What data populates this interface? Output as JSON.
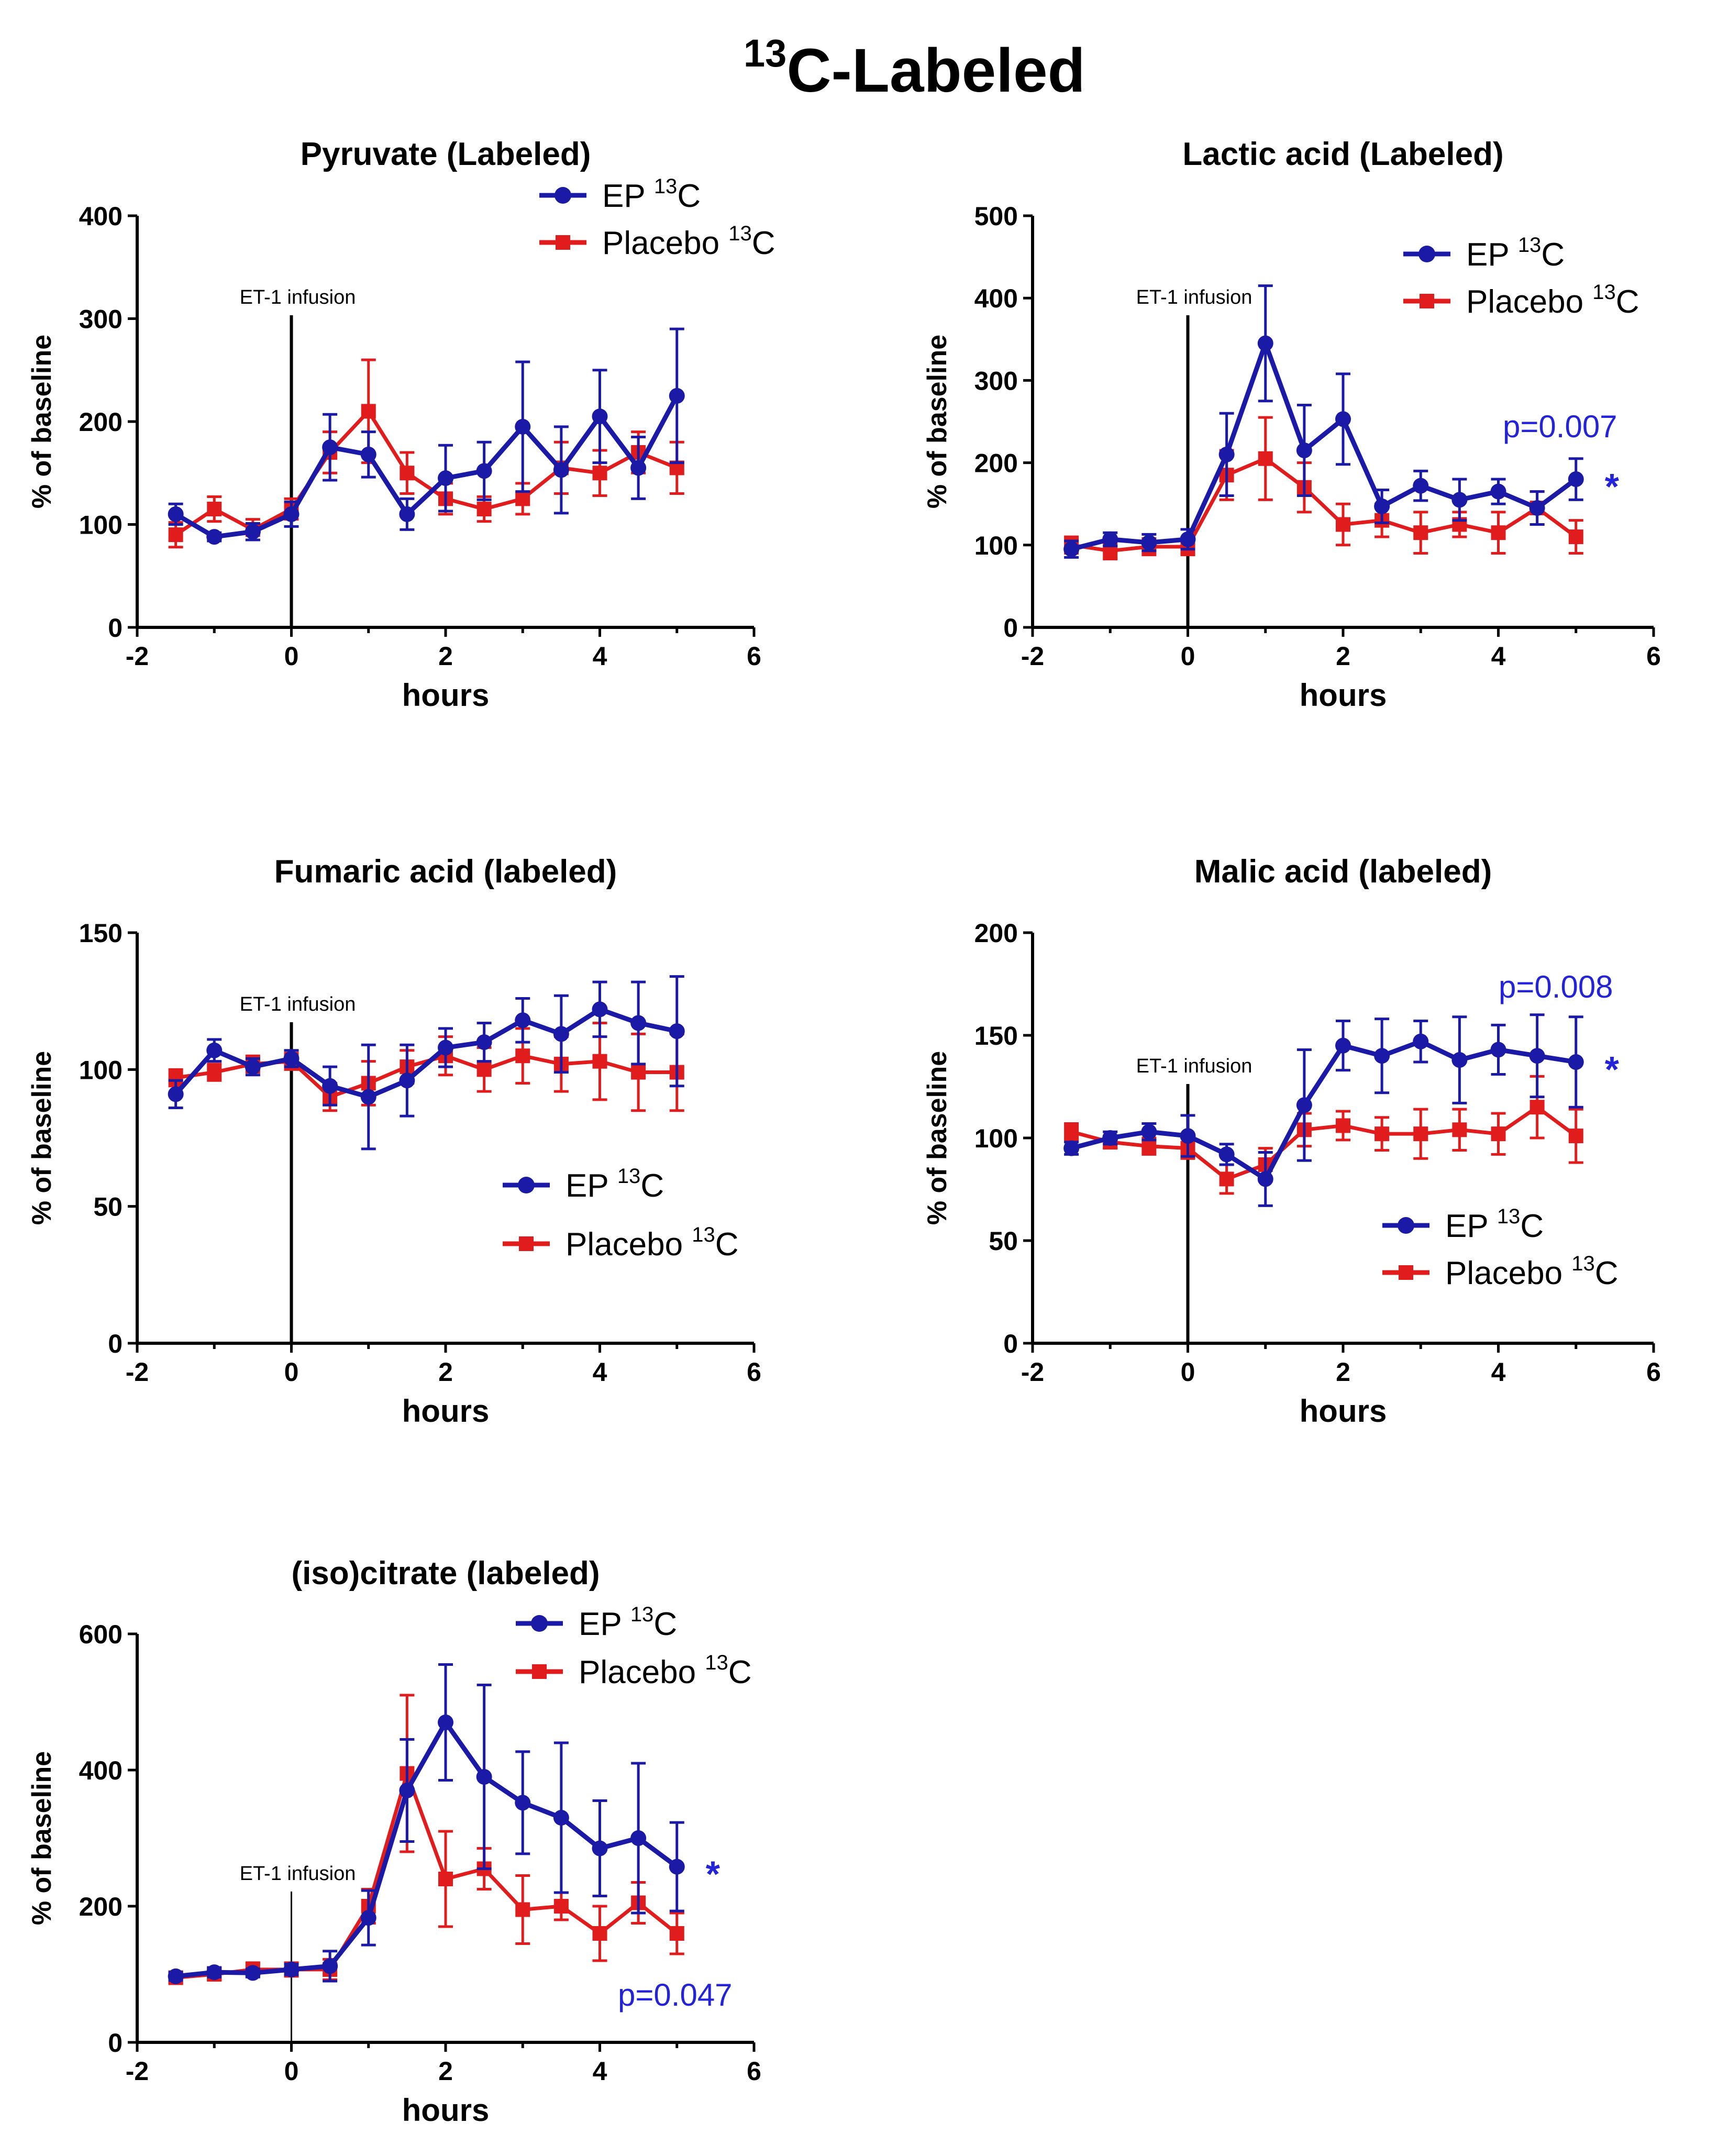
{
  "figure_title": {
    "sup": "13",
    "main": "C-Labeled"
  },
  "colors": {
    "ep": "#1a1aa6",
    "placebo": "#e01c1c",
    "annotation": "#2323d9"
  },
  "legend": {
    "ep_label": "EP",
    "placebo_label": "Placebo",
    "isotope": "C",
    "isotope_sup": "13"
  },
  "infusion_label": "ET-1 infusion",
  "chart_data": [
    {
      "type": "line",
      "title": "Pyruvate (Labeled)",
      "xlabel": "hours",
      "ylabel": "% of baseline",
      "xlim": [
        -2,
        6
      ],
      "ylim": [
        0,
        400
      ],
      "xticks": [
        -2,
        0,
        2,
        4,
        6
      ],
      "yticks": [
        0,
        100,
        200,
        300,
        400
      ],
      "legend_position": "top-right",
      "x": [
        -1.5,
        -1,
        -0.5,
        0,
        0.5,
        1,
        1.5,
        2,
        2.5,
        3,
        3.5,
        4,
        4.5,
        5
      ],
      "series": [
        {
          "name": "EP 13C",
          "key": "ep",
          "values": [
            110,
            88,
            93,
            110,
            175,
            168,
            110,
            145,
            152,
            195,
            153,
            205,
            155,
            225
          ],
          "errors": [
            10,
            4,
            8,
            12,
            32,
            22,
            15,
            32,
            28,
            63,
            42,
            45,
            30,
            65
          ]
        },
        {
          "name": "Placebo 13C",
          "key": "placebo",
          "values": [
            90,
            115,
            95,
            115,
            170,
            210,
            150,
            125,
            115,
            125,
            155,
            150,
            170,
            155
          ],
          "errors": [
            12,
            12,
            10,
            10,
            20,
            50,
            20,
            15,
            12,
            15,
            25,
            22,
            20,
            25
          ]
        }
      ],
      "annotations": []
    },
    {
      "type": "line",
      "title": "Lactic acid (Labeled)",
      "xlabel": "hours",
      "ylabel": "% of baseline",
      "xlim": [
        -2,
        6
      ],
      "ylim": [
        0,
        500
      ],
      "xticks": [
        -2,
        0,
        2,
        4,
        6
      ],
      "yticks": [
        0,
        100,
        200,
        300,
        400,
        500
      ],
      "legend_position": "top-right",
      "x": [
        -1.5,
        -1,
        -0.5,
        0,
        0.5,
        1,
        1.5,
        2,
        2.5,
        3,
        3.5,
        4,
        4.5,
        5
      ],
      "series": [
        {
          "name": "EP 13C",
          "key": "ep",
          "values": [
            95,
            107,
            103,
            107,
            210,
            345,
            215,
            253,
            147,
            172,
            155,
            165,
            145,
            180
          ],
          "errors": [
            10,
            8,
            10,
            12,
            50,
            70,
            55,
            55,
            20,
            18,
            25,
            15,
            20,
            25
          ]
        },
        {
          "name": "Placebo 13C",
          "key": "placebo",
          "values": [
            100,
            93,
            98,
            98,
            185,
            205,
            170,
            125,
            130,
            115,
            125,
            115,
            145,
            110
          ],
          "errors": [
            10,
            10,
            10,
            10,
            30,
            50,
            30,
            25,
            20,
            25,
            15,
            25,
            20,
            20
          ]
        }
      ],
      "annotations": [
        {
          "text": "p=0.007",
          "star": "*"
        }
      ]
    },
    {
      "type": "line",
      "title": "Fumaric acid (labeled)",
      "xlabel": "hours",
      "ylabel": "% of baseline",
      "xlim": [
        -2,
        6
      ],
      "ylim": [
        0,
        150
      ],
      "xticks": [
        -2,
        0,
        2,
        4,
        6
      ],
      "yticks": [
        0,
        50,
        100,
        150
      ],
      "legend_position": "center-right",
      "x": [
        -1.5,
        -1,
        -0.5,
        0,
        0.5,
        1,
        1.5,
        2,
        2.5,
        3,
        3.5,
        4,
        4.5,
        5
      ],
      "series": [
        {
          "name": "EP 13C",
          "key": "ep",
          "values": [
            91,
            107,
            101,
            104,
            94,
            90,
            96,
            108,
            110,
            118,
            113,
            122,
            117,
            114
          ],
          "errors": [
            5,
            4,
            3,
            3,
            7,
            19,
            13,
            7,
            7,
            8,
            14,
            10,
            15,
            20
          ]
        },
        {
          "name": "Placebo 13C",
          "key": "placebo",
          "values": [
            97,
            99,
            102,
            103,
            90,
            95,
            101,
            105,
            100,
            105,
            102,
            103,
            99,
            99
          ],
          "errors": [
            3,
            3,
            3,
            3,
            5,
            8,
            6,
            7,
            8,
            10,
            10,
            14,
            14,
            14
          ]
        }
      ],
      "annotations": []
    },
    {
      "type": "line",
      "title": "Malic acid (labeled)",
      "xlabel": "hours",
      "ylabel": "% of baseline",
      "xlim": [
        -2,
        6
      ],
      "ylim": [
        0,
        200
      ],
      "xticks": [
        -2,
        0,
        2,
        4,
        6
      ],
      "yticks": [
        0,
        50,
        100,
        150,
        200
      ],
      "legend_position": "bottom-right",
      "x": [
        -1.5,
        -1,
        -0.5,
        0,
        0.5,
        1,
        1.5,
        2,
        2.5,
        3,
        3.5,
        4,
        4.5,
        5
      ],
      "series": [
        {
          "name": "EP 13C",
          "key": "ep",
          "values": [
            95,
            100,
            103,
            101,
            92,
            80,
            116,
            145,
            140,
            147,
            138,
            143,
            140,
            137
          ],
          "errors": [
            3,
            3,
            4,
            10,
            5,
            13,
            27,
            12,
            18,
            10,
            21,
            12,
            20,
            22
          ]
        },
        {
          "name": "Placebo 13C",
          "key": "placebo",
          "values": [
            103,
            98,
            96,
            95,
            80,
            87,
            104,
            106,
            102,
            102,
            104,
            102,
            115,
            101
          ],
          "errors": [
            4,
            3,
            4,
            5,
            7,
            8,
            8,
            7,
            8,
            12,
            10,
            10,
            15,
            13
          ]
        }
      ],
      "annotations": [
        {
          "text": "p=0.008",
          "star": "*"
        }
      ]
    },
    {
      "type": "line",
      "title": "(iso)citrate (labeled)",
      "xlabel": "hours",
      "ylabel": "% of baseline",
      "xlim": [
        -2,
        6
      ],
      "ylim": [
        0,
        600
      ],
      "xticks": [
        -2,
        0,
        2,
        4,
        6
      ],
      "yticks": [
        0,
        200,
        400,
        600
      ],
      "legend_position": "top-right",
      "x": [
        -1.5,
        -1,
        -0.5,
        0,
        0.5,
        1,
        1.5,
        2,
        2.5,
        3,
        3.5,
        4,
        4.5,
        5
      ],
      "series": [
        {
          "name": "EP 13C",
          "key": "ep",
          "values": [
            97,
            103,
            102,
            107,
            112,
            183,
            370,
            470,
            390,
            352,
            330,
            285,
            300,
            258
          ],
          "errors": [
            6,
            7,
            6,
            8,
            22,
            40,
            75,
            85,
            135,
            75,
            110,
            70,
            110,
            65
          ]
        },
        {
          "name": "Placebo 13C",
          "key": "placebo",
          "values": [
            95,
            100,
            107,
            107,
            107,
            200,
            395,
            240,
            255,
            195,
            200,
            160,
            205,
            160
          ],
          "errors": [
            8,
            8,
            10,
            10,
            15,
            25,
            115,
            70,
            30,
            50,
            20,
            40,
            30,
            30
          ]
        }
      ],
      "annotations": [
        {
          "text": "p=0.047",
          "star": "*"
        }
      ]
    }
  ]
}
